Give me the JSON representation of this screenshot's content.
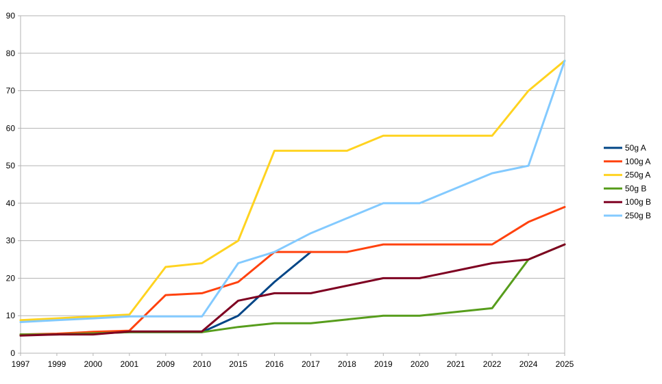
{
  "chart_data": {
    "type": "line",
    "categories": [
      "1997",
      "1999",
      "2000",
      "2001",
      "2009",
      "2010",
      "2015",
      "2016",
      "2017",
      "2018",
      "2019",
      "2020",
      "2021",
      "2022",
      "2024",
      "2025"
    ],
    "ylim": [
      0,
      90
    ],
    "yticks": [
      0,
      10,
      20,
      30,
      40,
      50,
      60,
      70,
      80,
      90
    ],
    "grid": true,
    "legend_position": "right",
    "series": [
      {
        "name": "50g A",
        "color": "#004586",
        "values": [
          5,
          5,
          5.3,
          5.6,
          5.6,
          5.6,
          10,
          19,
          27,
          null,
          null,
          null,
          null,
          null,
          null,
          null
        ]
      },
      {
        "name": "100g A",
        "color": "#ff420e",
        "values": [
          5,
          5.2,
          5.7,
          6,
          15.5,
          16,
          19,
          27,
          27,
          27,
          29,
          29,
          29,
          29,
          35,
          39
        ]
      },
      {
        "name": "250g A",
        "color": "#ffd320",
        "values": [
          8.8,
          9.3,
          9.8,
          10.3,
          23,
          24,
          30,
          54,
          54,
          54,
          58,
          58,
          58,
          58,
          70,
          78
        ]
      },
      {
        "name": "50g B",
        "color": "#579d1c",
        "values": [
          5,
          5,
          5.3,
          5.6,
          5.6,
          5.6,
          7,
          8,
          8,
          9,
          10,
          10,
          11,
          12,
          25,
          29
        ]
      },
      {
        "name": "100g B",
        "color": "#7e0021",
        "values": [
          4.7,
          5,
          5,
          5.8,
          5.8,
          5.8,
          14,
          16,
          16,
          18,
          20,
          20,
          22,
          24,
          25,
          29
        ]
      },
      {
        "name": "250g B",
        "color": "#83caff",
        "values": [
          8.3,
          8.8,
          9.3,
          9.8,
          9.8,
          9.8,
          24,
          27,
          32,
          36,
          40,
          40,
          44,
          48,
          50,
          78
        ]
      }
    ]
  }
}
